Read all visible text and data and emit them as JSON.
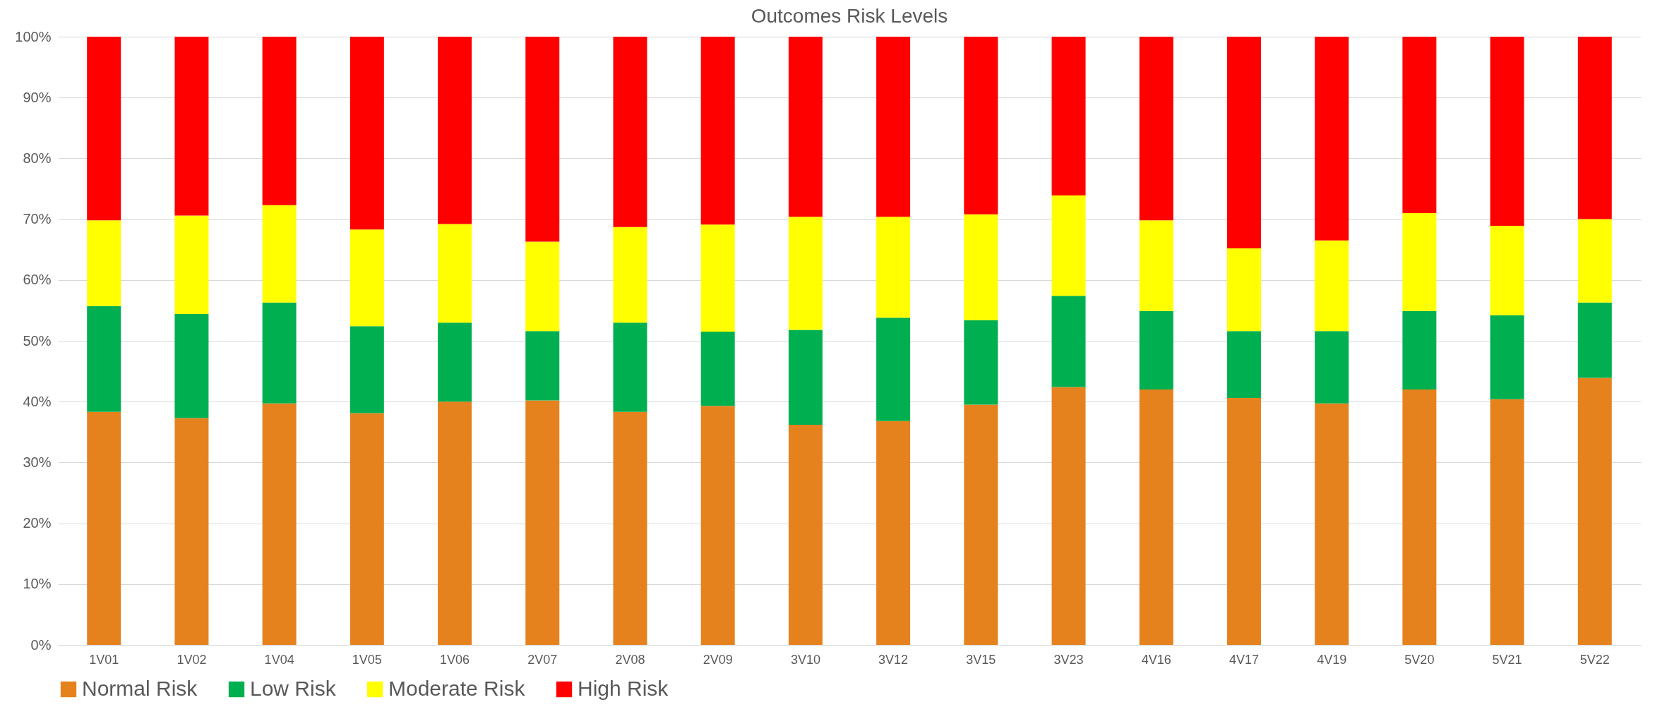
{
  "chart_data": {
    "type": "bar",
    "title": "Outcomes Risk Levels",
    "stacked": true,
    "categories": [
      "1V01",
      "1V02",
      "1V04",
      "1V05",
      "1V06",
      "2V07",
      "2V08",
      "2V09",
      "3V10",
      "3V12",
      "3V15",
      "3V23",
      "4V16",
      "4V17",
      "4V19",
      "5V20",
      "5V21",
      "5V22"
    ],
    "series": [
      {
        "name": "Normal Risk",
        "color": "#e6821e",
        "values": [
          38.3,
          37.3,
          39.7,
          38.1,
          40.0,
          40.2,
          38.3,
          39.3,
          36.2,
          36.8,
          39.5,
          42.4,
          42.0,
          40.6,
          39.7,
          42.0,
          40.4,
          43.9
        ]
      },
      {
        "name": "Low Risk",
        "color": "#00b050",
        "values": [
          17.4,
          17.1,
          16.6,
          14.3,
          13.0,
          11.4,
          14.7,
          12.2,
          15.6,
          17.0,
          13.9,
          15.0,
          12.9,
          11.0,
          11.9,
          12.9,
          13.8,
          12.4
        ]
      },
      {
        "name": "Moderate Risk",
        "color": "#ffff00",
        "values": [
          14.1,
          16.2,
          16.0,
          15.9,
          16.2,
          14.7,
          15.7,
          17.6,
          18.6,
          16.6,
          17.4,
          16.5,
          14.9,
          13.6,
          14.9,
          16.1,
          14.7,
          13.7
        ]
      },
      {
        "name": "High Risk",
        "color": "#ff0000",
        "values": [
          30.2,
          29.4,
          27.7,
          31.7,
          30.8,
          33.7,
          31.3,
          30.9,
          29.6,
          29.6,
          29.2,
          26.1,
          30.2,
          34.8,
          33.5,
          29.0,
          31.1,
          30.0
        ]
      }
    ],
    "ylim": [
      0,
      100
    ],
    "yticks": [
      {
        "value": 0,
        "label": "0%"
      },
      {
        "value": 10,
        "label": "10%"
      },
      {
        "value": 20,
        "label": "20%"
      },
      {
        "value": 30,
        "label": "30%"
      },
      {
        "value": 40,
        "label": "40%"
      },
      {
        "value": 50,
        "label": "50%"
      },
      {
        "value": 60,
        "label": "60%"
      },
      {
        "value": 70,
        "label": "70%"
      },
      {
        "value": 80,
        "label": "80%"
      },
      {
        "value": 90,
        "label": "90%"
      },
      {
        "value": 100,
        "label": "100%"
      }
    ],
    "grid": "y",
    "legend": "bottom"
  }
}
